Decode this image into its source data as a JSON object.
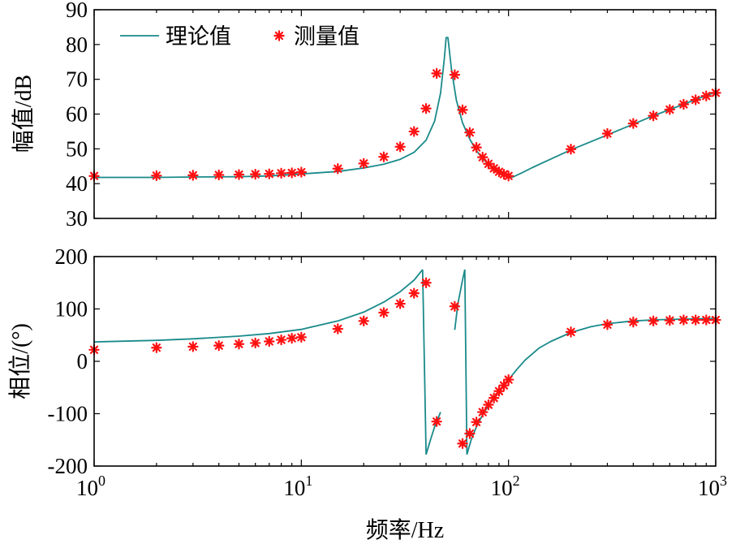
{
  "chart_data": [
    {
      "type": "line",
      "panel": "magnitude",
      "xlabel": "频率/Hz",
      "ylabel": "幅值/dB",
      "xscale": "log",
      "xlim": [
        1,
        1000
      ],
      "ylim": [
        30,
        90
      ],
      "yticks": [
        30,
        40,
        50,
        60,
        70,
        80,
        90
      ],
      "xticks": [
        {
          "value": 1,
          "base": "10",
          "exp": "0"
        },
        {
          "value": 10,
          "base": "10",
          "exp": "1"
        },
        {
          "value": 100,
          "base": "10",
          "exp": "2"
        },
        {
          "value": 1000,
          "base": "10",
          "exp": "3"
        }
      ],
      "legend": {
        "placement": "top-left",
        "entries": [
          "理论值",
          "测量值"
        ]
      },
      "series": [
        {
          "name": "理论值",
          "style": "line",
          "color": "#1a8a8a",
          "x": [
            1,
            2,
            3,
            5,
            7,
            10,
            15,
            20,
            25,
            30,
            35,
            40,
            44,
            47,
            49,
            50,
            51,
            53,
            56,
            60,
            65,
            70,
            75,
            80,
            85,
            90,
            95,
            100,
            105,
            115,
            130,
            150,
            200,
            300,
            400,
            500,
            600,
            700,
            800,
            900,
            1000
          ],
          "y": [
            41.8,
            41.8,
            41.9,
            42.0,
            42.2,
            42.8,
            43.5,
            44.5,
            45.6,
            47.0,
            49.0,
            52.5,
            58.0,
            66.0,
            76.0,
            82.0,
            82.0,
            73.0,
            64.0,
            57.5,
            52.8,
            49.5,
            47.2,
            45.5,
            44.2,
            43.2,
            42.5,
            42.0,
            41.9,
            43.0,
            44.6,
            46.3,
            49.7,
            54.0,
            57.1,
            59.5,
            61.3,
            62.8,
            64.2,
            65.3,
            66.3
          ]
        },
        {
          "name": "测量值",
          "style": "marker",
          "color": "#ff1010",
          "x": [
            1,
            2,
            3,
            4,
            5,
            6,
            7,
            8,
            9,
            10,
            15,
            20,
            25,
            30,
            35,
            40,
            45,
            55,
            60,
            65,
            70,
            75,
            80,
            85,
            90,
            95,
            100,
            200,
            300,
            400,
            500,
            600,
            700,
            800,
            900,
            1000
          ],
          "y": [
            42.2,
            42.3,
            42.4,
            42.5,
            42.6,
            42.7,
            42.8,
            43.0,
            43.1,
            43.3,
            44.3,
            45.8,
            47.7,
            50.6,
            55.0,
            61.6,
            71.7,
            71.3,
            61.2,
            54.7,
            50.4,
            47.6,
            45.7,
            44.4,
            43.4,
            42.7,
            42.2,
            49.9,
            54.4,
            57.3,
            59.5,
            61.3,
            62.8,
            64.1,
            65.2,
            66.1
          ]
        }
      ]
    },
    {
      "type": "line",
      "panel": "phase",
      "xlabel": "频率/Hz",
      "ylabel": "相位/(°)",
      "xscale": "log",
      "xlim": [
        1,
        1000
      ],
      "ylim": [
        -200,
        200
      ],
      "yticks": [
        -200,
        -100,
        0,
        100,
        200
      ],
      "xticks": [
        {
          "value": 1,
          "base": "10",
          "exp": "0"
        },
        {
          "value": 10,
          "base": "10",
          "exp": "1"
        },
        {
          "value": 100,
          "base": "10",
          "exp": "2"
        },
        {
          "value": 1000,
          "base": "10",
          "exp": "3"
        }
      ],
      "series": [
        {
          "name": "理论值",
          "style": "line",
          "color": "#1a8a8a",
          "segments": [
            {
              "x": [
                1,
                2,
                3,
                5,
                7,
                10,
                15,
                20,
                25,
                30,
                35,
                38.5
              ],
              "y": [
                37,
                40,
                43,
                48,
                53,
                61,
                77,
                94,
                113,
                133,
                155,
                175
              ]
            },
            {
              "x": [
                38.5,
                40
              ],
              "y": [
                175,
                -178
              ]
            },
            {
              "x": [
                40,
                42,
                44,
                46,
                47
              ],
              "y": [
                -178,
                -150,
                -125,
                -106,
                -97
              ]
            },
            {
              "x": [
                55,
                57,
                60,
                61.5
              ],
              "y": [
                60,
                110,
                155,
                175
              ]
            },
            {
              "x": [
                61.5,
                63
              ],
              "y": [
                175,
                -178
              ]
            },
            {
              "x": [
                63,
                66,
                70,
                75,
                80,
                85,
                90,
                100,
                110,
                120,
                140,
                160,
                200,
                250,
                300,
                400,
                500,
                600,
                800,
                1000
              ],
              "y": [
                -178,
                -150,
                -125,
                -102,
                -85,
                -70,
                -57,
                -35,
                -15,
                2,
                25,
                38,
                55,
                66,
                72,
                77,
                79,
                80,
                81,
                82
              ]
            }
          ]
        },
        {
          "name": "测量值",
          "style": "marker",
          "color": "#ff1010",
          "x": [
            1,
            2,
            3,
            4,
            5,
            6,
            7,
            8,
            9,
            10,
            15,
            20,
            25,
            30,
            35,
            40,
            45,
            55,
            60,
            65,
            70,
            75,
            80,
            85,
            90,
            95,
            100,
            200,
            300,
            400,
            500,
            600,
            700,
            800,
            900,
            1000
          ],
          "y": [
            22,
            26,
            28,
            30,
            33,
            35,
            38,
            41,
            44,
            46,
            62,
            77,
            93,
            110,
            130,
            150,
            -115,
            105,
            -157,
            -138,
            -116,
            -97,
            -83,
            -70,
            -57,
            -46,
            -35,
            56,
            70,
            75,
            77,
            78,
            79,
            79,
            79,
            79
          ]
        }
      ]
    }
  ]
}
